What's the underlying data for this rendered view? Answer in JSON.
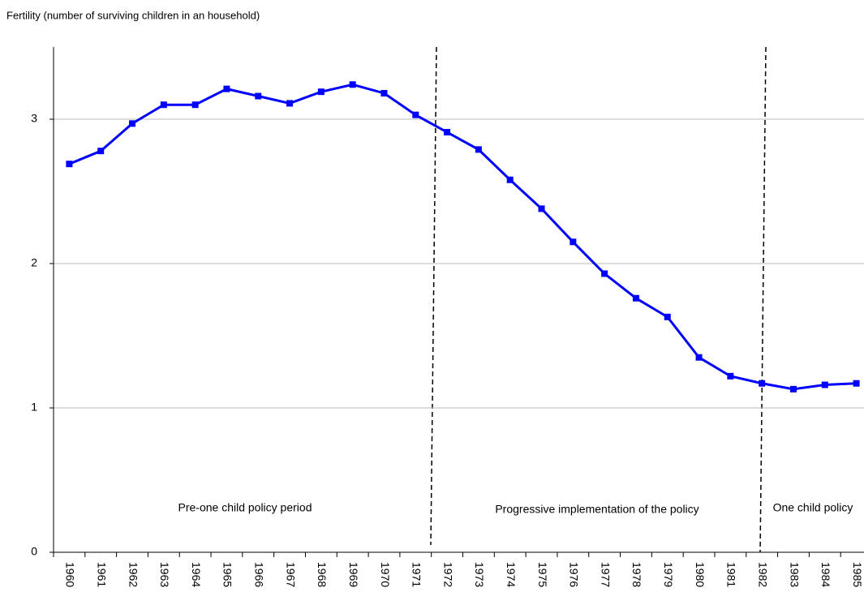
{
  "chart_data": {
    "type": "line",
    "title": "Fertility (number of surviving children in an household)",
    "categories": [
      "1960",
      "1961",
      "1962",
      "1963",
      "1964",
      "1965",
      "1966",
      "1967",
      "1968",
      "1969",
      "1970",
      "1971",
      "1972",
      "1973",
      "1974",
      "1975",
      "1976",
      "1977",
      "1978",
      "1979",
      "1980",
      "1981",
      "1982",
      "1983",
      "1984",
      "1985"
    ],
    "values": [
      2.69,
      2.78,
      2.97,
      3.1,
      3.1,
      3.21,
      3.16,
      3.11,
      3.19,
      3.24,
      3.18,
      3.03,
      2.91,
      2.79,
      2.58,
      2.38,
      2.15,
      1.93,
      1.76,
      1.63,
      1.35,
      1.22,
      1.17,
      1.13,
      1.16,
      1.17
    ],
    "color": "#0000ff",
    "ylim": [
      0,
      3.5
    ],
    "yticks": [
      0,
      1,
      2,
      3
    ],
    "grid": true,
    "annotations": [
      "Pre-one child policy period",
      "Progressive implementation of the policy",
      "One child policy"
    ]
  }
}
